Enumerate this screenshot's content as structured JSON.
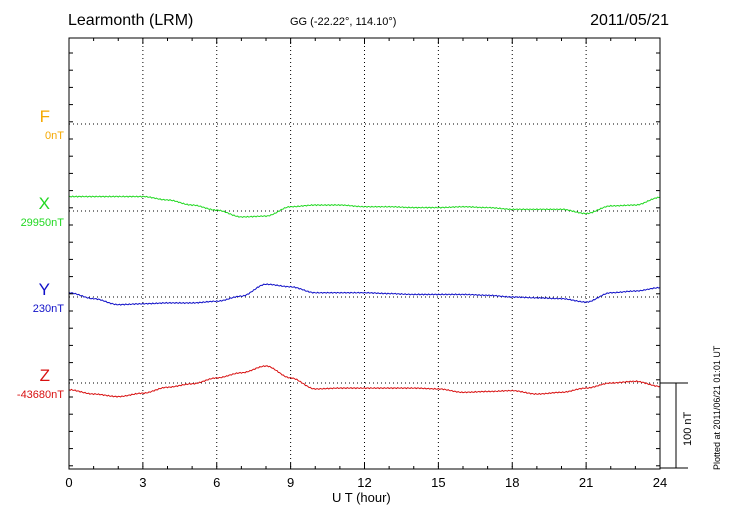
{
  "header": {
    "station": "Learmonth (LRM)",
    "coords": "GG (-22.22°, 114.10°)",
    "date": "2011/05/21"
  },
  "footer": {
    "plotted": "Plotted at 2011/06/21 01:01 UT"
  },
  "scale": {
    "label": "100 nT",
    "value_nT": 100
  },
  "colors": {
    "F": "#f5a800",
    "X": "#22d822",
    "Y": "#1010c8",
    "Z": "#d81010"
  },
  "chart_data": {
    "type": "line",
    "xlabel": "U T (hour)",
    "xlim": [
      0,
      24
    ],
    "xticks": [
      "0",
      "3",
      "6",
      "9",
      "12",
      "15",
      "18",
      "21",
      "24"
    ],
    "grid": true,
    "components": [
      {
        "name": "F",
        "baseline": "0nT",
        "color": "#f5a800",
        "x": [],
        "values": []
      },
      {
        "name": "X",
        "baseline": "29950nT",
        "color": "#22d822",
        "x": [
          0,
          1,
          2,
          3,
          4,
          5,
          6,
          7,
          8,
          9,
          10,
          11,
          12,
          13,
          14,
          15,
          16,
          17,
          18,
          19,
          20,
          21,
          22,
          23,
          24
        ],
        "values": [
          17,
          17,
          17,
          17,
          13,
          7,
          1,
          -7,
          -6,
          5,
          7,
          7,
          5,
          5,
          4,
          4,
          5,
          4,
          2,
          2,
          2,
          -3,
          6,
          7,
          16
        ]
      },
      {
        "name": "Y",
        "baseline": "230nT",
        "color": "#1010c8",
        "x": [
          0,
          1,
          2,
          3,
          4,
          5,
          6,
          7,
          8,
          9,
          10,
          11,
          12,
          13,
          14,
          15,
          16,
          17,
          18,
          19,
          20,
          21,
          22,
          23,
          24
        ],
        "values": [
          5,
          -2,
          -9,
          -8,
          -7,
          -7,
          -5,
          1,
          15,
          12,
          5,
          5,
          5,
          4,
          3,
          3,
          3,
          2,
          0,
          -1,
          -2,
          -6,
          5,
          7,
          11
        ]
      },
      {
        "name": "Z",
        "baseline": "-43680nT",
        "color": "#d81010",
        "x": [
          0,
          1,
          2,
          3,
          4,
          5,
          6,
          7,
          8,
          9,
          10,
          11,
          12,
          13,
          14,
          15,
          16,
          17,
          18,
          19,
          20,
          21,
          22,
          23,
          24
        ],
        "values": [
          -8,
          -13,
          -16,
          -12,
          -5,
          -1,
          6,
          12,
          20,
          6,
          -7,
          -6,
          -6,
          -6,
          -6,
          -7,
          -11,
          -10,
          -9,
          -13,
          -11,
          -6,
          0,
          2,
          -4
        ]
      }
    ]
  }
}
